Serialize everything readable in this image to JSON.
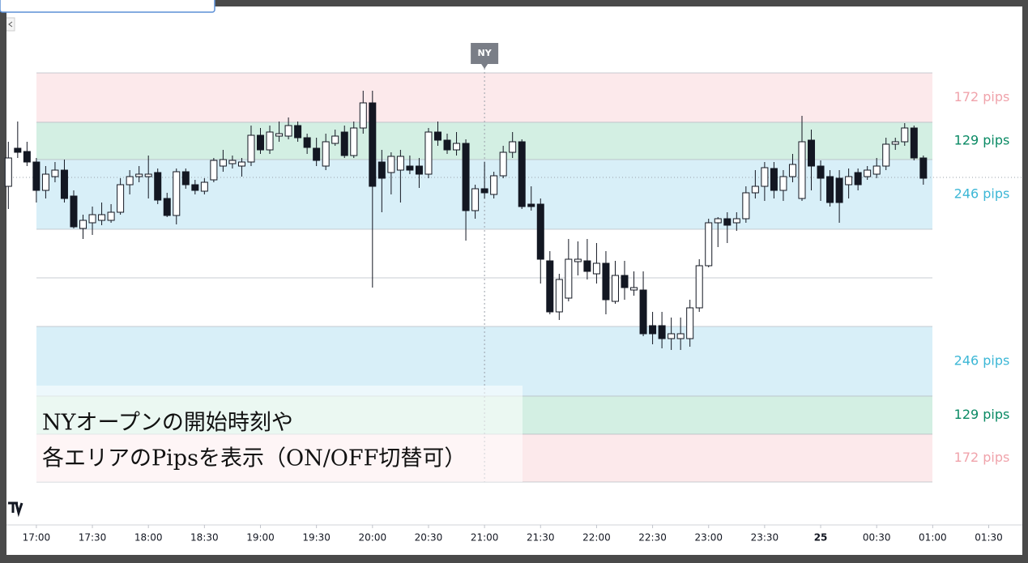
{
  "chart_data": {
    "type": "candlestick",
    "xlim": [
      -16,
      528
    ],
    "xticks": [
      {
        "value": 0,
        "label": "17:00"
      },
      {
        "value": 30,
        "label": "17:30"
      },
      {
        "value": 60,
        "label": "18:00"
      },
      {
        "value": 90,
        "label": "18:30"
      },
      {
        "value": 120,
        "label": "19:00"
      },
      {
        "value": 150,
        "label": "19:30"
      },
      {
        "value": 180,
        "label": "20:00"
      },
      {
        "value": 210,
        "label": "20:30"
      },
      {
        "value": 240,
        "label": "21:00"
      },
      {
        "value": 270,
        "label": "21:30"
      },
      {
        "value": 300,
        "label": "22:00"
      },
      {
        "value": 330,
        "label": "22:30"
      },
      {
        "value": 360,
        "label": "23:00"
      },
      {
        "value": 390,
        "label": "23:30"
      },
      {
        "value": 420,
        "label": "25"
      },
      {
        "value": 450,
        "label": "00:30"
      },
      {
        "value": 480,
        "label": "01:00"
      },
      {
        "value": 510,
        "label": "01:30"
      }
    ],
    "ylim": [
      0,
      645
    ],
    "up_color": "#ffffff",
    "down_color": "#131722",
    "x": [
      -15,
      -10,
      -5,
      0,
      5,
      10,
      15,
      20,
      25,
      30,
      35,
      40,
      45,
      50,
      55,
      60,
      65,
      70,
      75,
      80,
      85,
      90,
      95,
      100,
      105,
      110,
      115,
      120,
      125,
      130,
      135,
      140,
      145,
      150,
      155,
      160,
      165,
      170,
      175,
      180,
      185,
      190,
      195,
      200,
      205,
      210,
      215,
      220,
      225,
      230,
      235,
      240,
      245,
      250,
      255,
      260,
      265,
      270,
      275,
      280,
      285,
      290,
      295,
      300,
      305,
      310,
      315,
      320,
      325,
      330,
      335,
      340,
      345,
      350,
      355,
      360,
      365,
      370,
      375,
      380,
      385,
      390,
      395,
      400,
      405,
      410,
      415,
      420,
      425,
      430,
      435,
      440,
      445,
      450,
      455,
      460,
      465,
      470,
      475
    ],
    "open": [
      415,
      462,
      458,
      445,
      410,
      427,
      435,
      403,
      363,
      370,
      373,
      373,
      383,
      417,
      427,
      427,
      432,
      400,
      379,
      433,
      417,
      409,
      423,
      440,
      443,
      440,
      445,
      478,
      460,
      477,
      477,
      490,
      475,
      462,
      440,
      468,
      482,
      453,
      487,
      518,
      445,
      432,
      435,
      440,
      440,
      430,
      482,
      472,
      460,
      468,
      385,
      412,
      405,
      428,
      457,
      470,
      393,
      393,
      323,
      260,
      277,
      322,
      323,
      307,
      320,
      273,
      305,
      287,
      287,
      243,
      243,
      227,
      227,
      227,
      265,
      317,
      370,
      375,
      370,
      375,
      407,
      415,
      437,
      410,
      427,
      400,
      472,
      440,
      427,
      425,
      417,
      432,
      427,
      430,
      440,
      467,
      470,
      487,
      450
    ],
    "high": [
      470,
      495,
      470,
      450,
      440,
      445,
      448,
      410,
      380,
      390,
      395,
      393,
      425,
      435,
      440,
      453,
      437,
      407,
      437,
      437,
      423,
      425,
      450,
      460,
      453,
      450,
      490,
      487,
      490,
      495,
      500,
      495,
      480,
      475,
      480,
      485,
      490,
      495,
      533,
      533,
      460,
      457,
      460,
      453,
      450,
      487,
      495,
      480,
      482,
      473,
      417,
      445,
      433,
      465,
      482,
      473,
      415,
      400,
      335,
      307,
      350,
      347,
      350,
      345,
      335,
      323,
      323,
      310,
      310,
      260,
      260,
      253,
      253,
      275,
      325,
      375,
      377,
      383,
      383,
      415,
      435,
      445,
      445,
      435,
      455,
      502,
      485,
      447,
      435,
      435,
      437,
      437,
      440,
      450,
      475,
      475,
      493,
      490,
      453
    ],
    "low": [
      387,
      450,
      440,
      395,
      400,
      420,
      395,
      363,
      350,
      355,
      367,
      370,
      380,
      405,
      420,
      400,
      393,
      377,
      368,
      412,
      405,
      405,
      420,
      433,
      437,
      427,
      440,
      455,
      455,
      470,
      473,
      470,
      455,
      440,
      435,
      465,
      450,
      450,
      480,
      290,
      383,
      405,
      395,
      430,
      413,
      425,
      465,
      455,
      453,
      348,
      375,
      400,
      400,
      425,
      450,
      387,
      385,
      295,
      257,
      250,
      273,
      305,
      300,
      295,
      257,
      270,
      275,
      280,
      230,
      220,
      215,
      213,
      213,
      217,
      260,
      315,
      340,
      345,
      360,
      370,
      400,
      397,
      400,
      397,
      420,
      397,
      410,
      397,
      390,
      370,
      400,
      410,
      423,
      425,
      435,
      460,
      465,
      447,
      417
    ],
    "close": [
      450,
      457,
      445,
      410,
      430,
      435,
      400,
      365,
      373,
      380,
      380,
      383,
      417,
      427,
      430,
      430,
      398,
      379,
      433,
      417,
      410,
      420,
      447,
      448,
      447,
      445,
      478,
      460,
      482,
      480,
      490,
      475,
      463,
      447,
      470,
      477,
      453,
      487,
      518,
      415,
      425,
      452,
      452,
      435,
      430,
      482,
      472,
      460,
      468,
      385,
      412,
      407,
      428,
      457,
      470,
      390,
      390,
      325,
      260,
      300,
      325,
      325,
      310,
      320,
      275,
      305,
      290,
      290,
      233,
      233,
      227,
      233,
      233,
      265,
      317,
      370,
      375,
      367,
      375,
      407,
      415,
      438,
      410,
      427,
      442,
      470,
      440,
      425,
      395,
      395,
      427,
      417,
      435,
      440,
      467,
      470,
      487,
      450,
      425
    ],
    "last_price": 426,
    "session_marker": {
      "label": "NY",
      "x": 240
    },
    "zones": [
      {
        "label": "172 pips",
        "from": 494,
        "to": 555,
        "color": "#fce9eb",
        "label_color": "#f0a3ab"
      },
      {
        "label": "129 pips",
        "from": 448,
        "to": 494,
        "color": "#d3efe3",
        "label_color": "#0a8a64"
      },
      {
        "label": "246 pips",
        "from": 362,
        "to": 448,
        "color": "#d8eff8",
        "label_color": "#3cb7d6"
      },
      {
        "label": "246 pips",
        "from": 156,
        "to": 242,
        "color": "#d8eff8",
        "label_color": "#3cb7d6"
      },
      {
        "label": "129 pips",
        "from": 109,
        "to": 156,
        "color": "#d3efe3",
        "label_color": "#0a8a64"
      },
      {
        "label": "172 pips",
        "from": 50,
        "to": 109,
        "color": "#fce9eb",
        "label_color": "#f0a3ab"
      }
    ],
    "mid_level": 302,
    "caption": [
      "NYオープンの開始時刻や",
      "各エリアのPipsを表示（ON/OFF切替可）"
    ]
  }
}
